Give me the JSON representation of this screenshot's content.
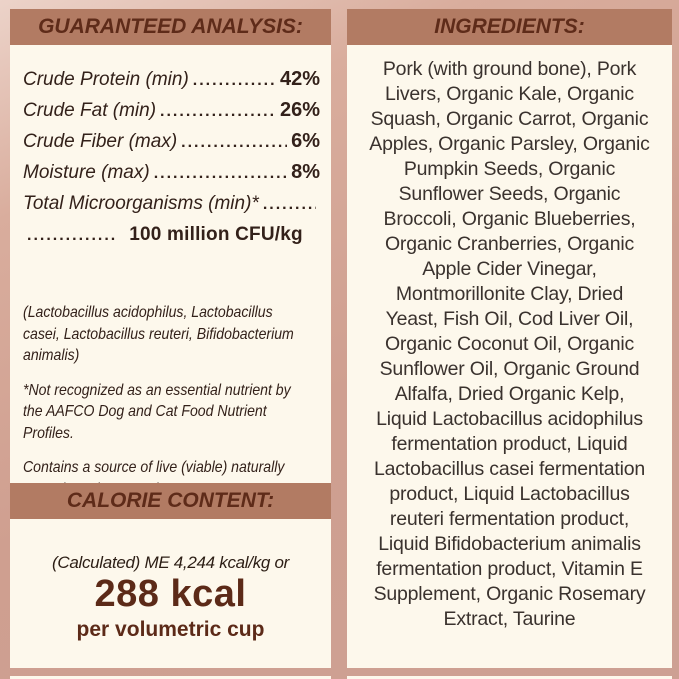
{
  "colors": {
    "background": "#d2a292",
    "band": "#b27b63",
    "panel": "#fdf8ec",
    "header_text": "#5e2b19",
    "body_text": "#33211a",
    "ingredients_text": "#3a322e",
    "accent_text": "#5c2a18"
  },
  "guaranteed_analysis": {
    "title": "GUARANTEED ANALYSIS:",
    "rows": [
      {
        "label": "Crude Protein (min)",
        "dots": "..........................................",
        "value": "42%"
      },
      {
        "label": "Crude Fat (min)",
        "dots": "..........................................",
        "value": "26%"
      },
      {
        "label": "Crude Fiber (max)",
        "dots": "..........................................",
        "value": "6%"
      },
      {
        "label": "Moisture (max)",
        "dots": "..........................................",
        "value": "8%"
      },
      {
        "label": "Total Microorganisms (min)*",
        "dots": "..........................................",
        "value": ""
      }
    ],
    "cfu_line": {
      "dots": "..............",
      "value": "100 million CFU/kg"
    },
    "microorganisms": [
      "(Lactobacillus acidophilus, Lactobacillus",
      "casei, Lactobacillus reuteri, Bifidobacterium",
      "animalis)"
    ],
    "footnote": [
      "*Not recognized as an essential nutrient by",
      "the AAFCO Dog and Cat Food Nutrient",
      "Profiles."
    ],
    "live_note": [
      "Contains a source of live (viable) naturally",
      "occurring microorganisms"
    ]
  },
  "calorie_content": {
    "title": "CALORIE CONTENT:",
    "calculated_line": "(Calculated) ME 4,244 kcal/kg or",
    "kcal": "288 kcal",
    "per": "per volumetric cup"
  },
  "ingredients": {
    "title": "INGREDIENTS:",
    "lines": [
      "Pork (with ground bone), Pork",
      "Livers, Organic Kale, Organic",
      "Squash, Organic Carrot, Organic",
      "Apples, Organic Parsley, Organic",
      "Pumpkin Seeds, Organic",
      "Sunflower Seeds, Organic",
      "Broccoli, Organic Blueberries,",
      "Organic Cranberries, Organic",
      "Apple Cider Vinegar,",
      "Montmorillonite Clay, Dried",
      "Yeast, Fish Oil, Cod Liver Oil,",
      "Organic Coconut Oil, Organic",
      "Sunflower Oil, Organic Ground",
      "Alfalfa, Dried Organic Kelp,",
      "Liquid Lactobacillus acidophilus",
      "fermentation product, Liquid",
      "Lactobacillus casei fermentation",
      "product, Liquid Lactobacillus",
      "reuteri fermentation product,",
      "Liquid Bifidobacterium animalis",
      "fermentation product, Vitamin E",
      "Supplement, Organic Rosemary",
      "Extract, Taurine"
    ]
  }
}
